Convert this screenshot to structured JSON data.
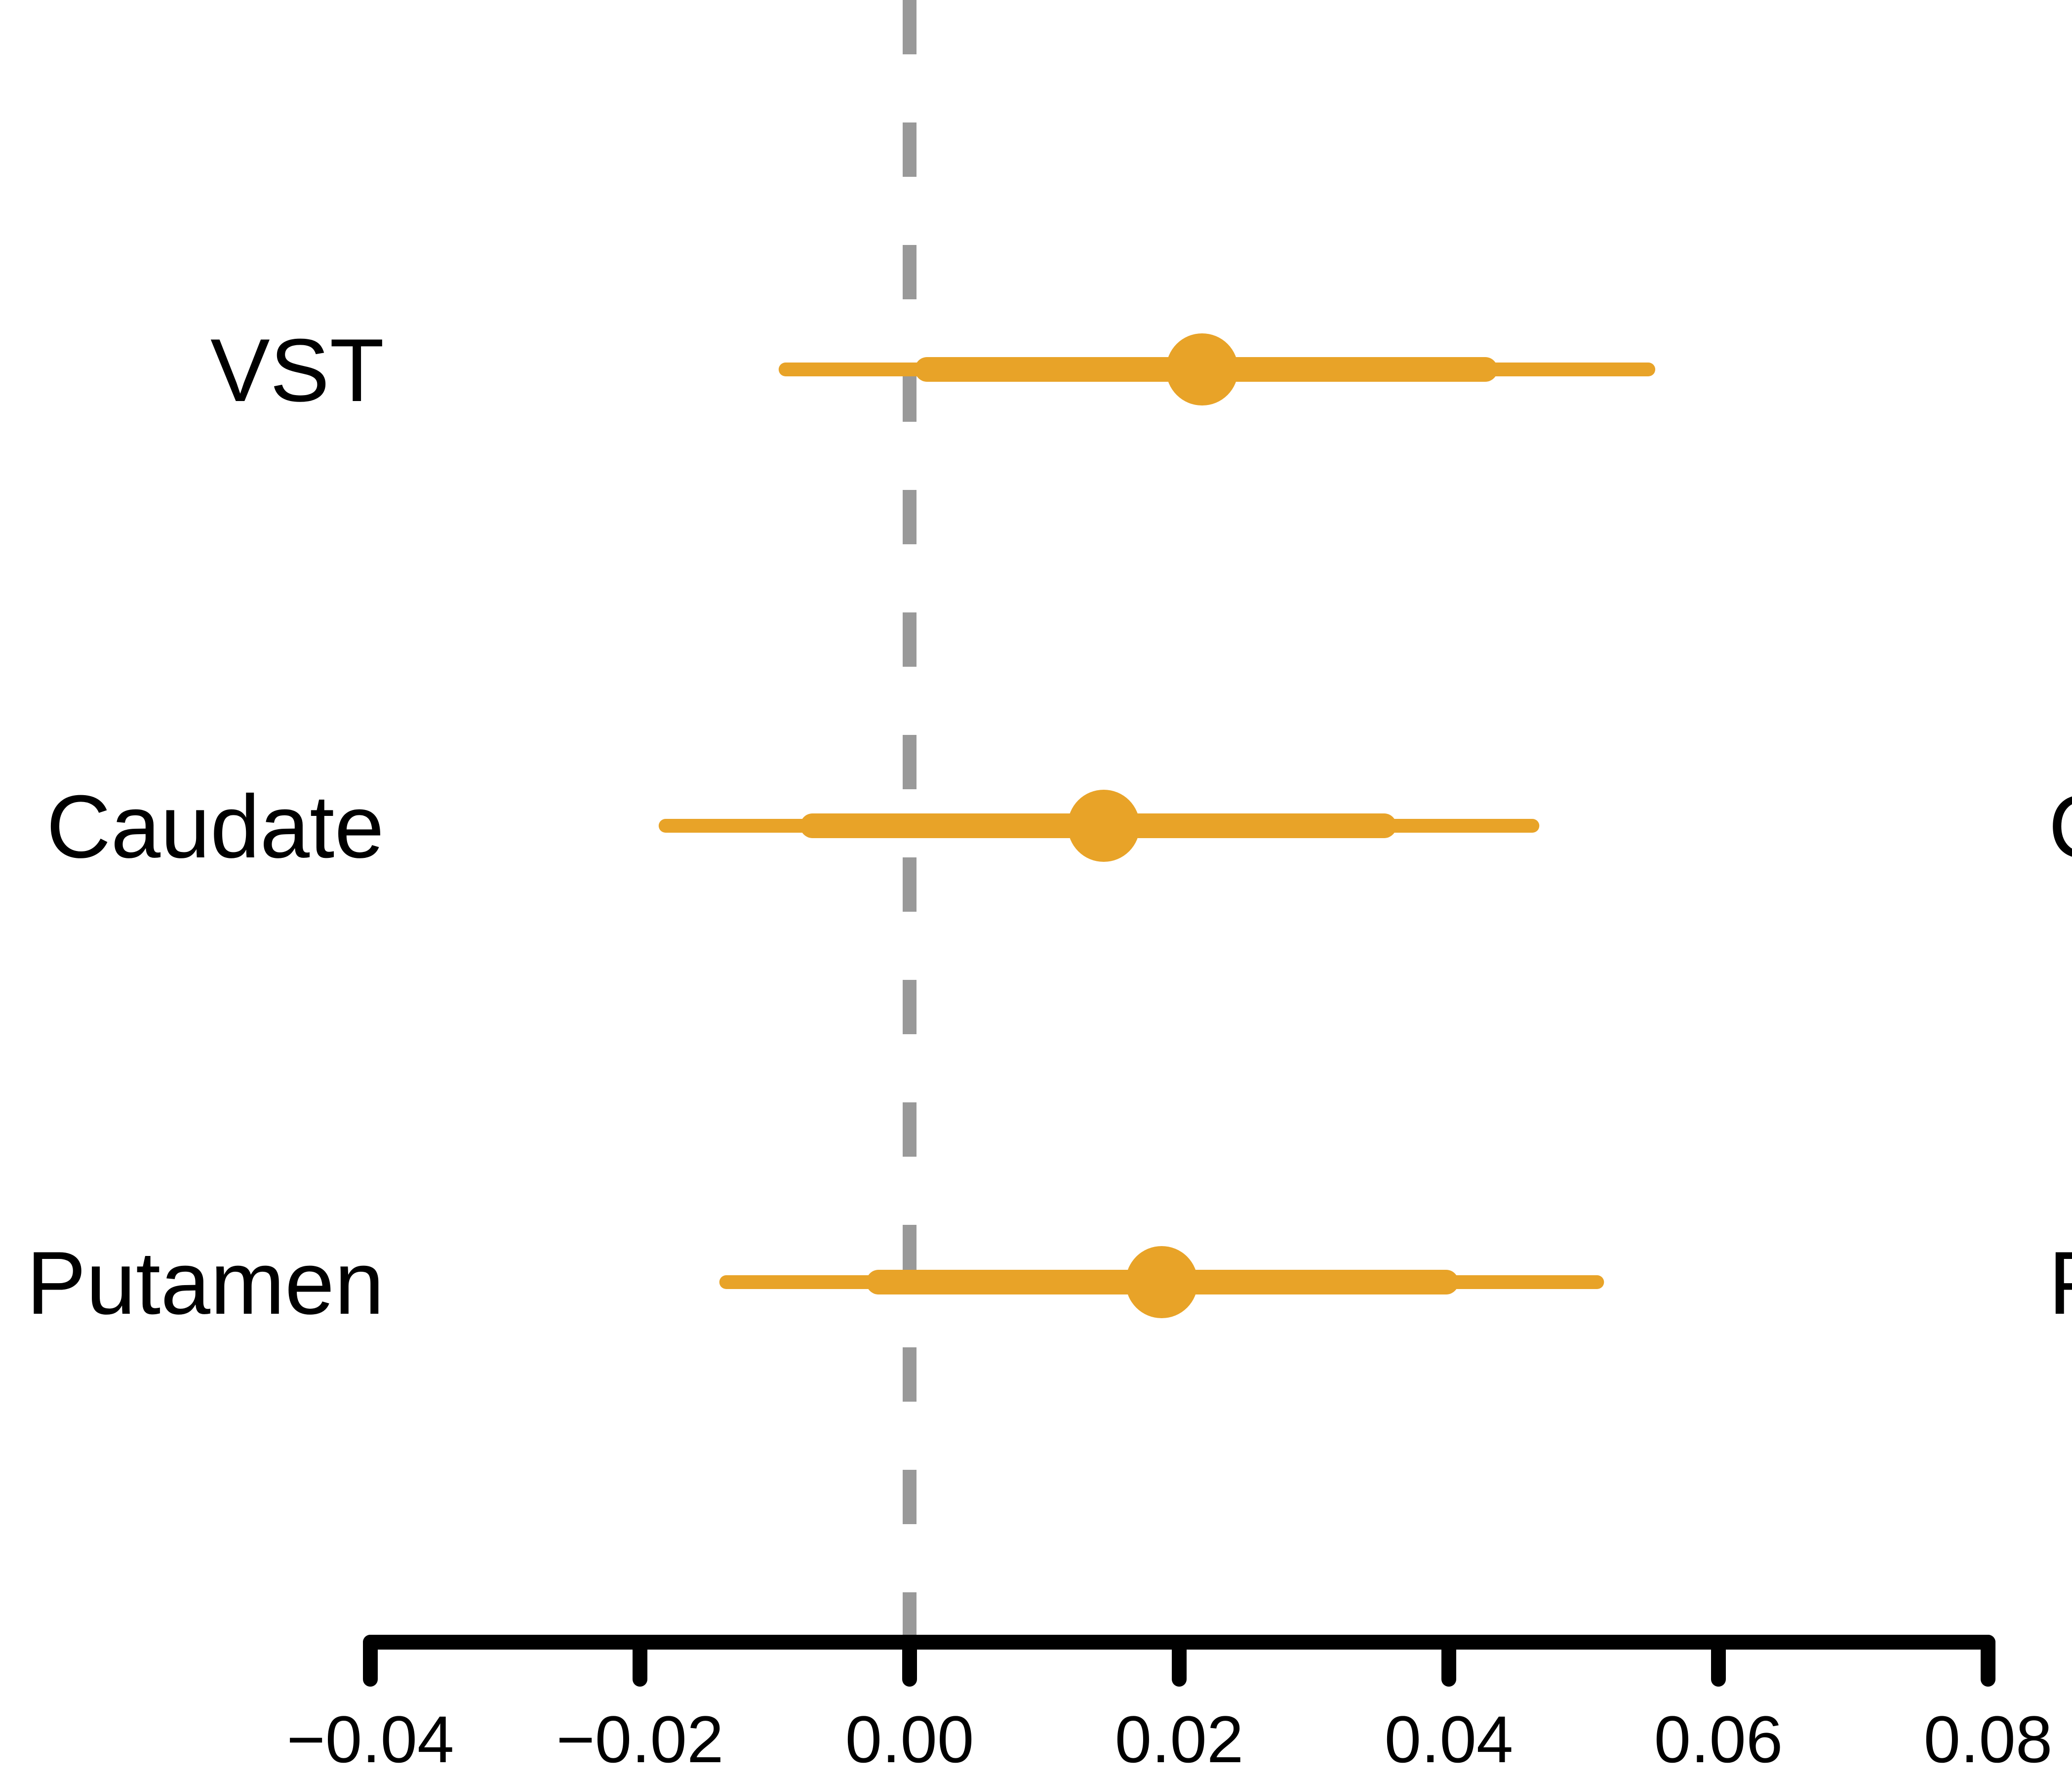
{
  "chart_data": {
    "type": "forest",
    "rows": [
      {
        "label": "VST",
        "estimate": 0.0217,
        "inner": [
          0.0013,
          0.0427
        ],
        "outer": [
          -0.0092,
          0.0548
        ]
      },
      {
        "label": "Caudate",
        "estimate": 0.0144,
        "inner": [
          -0.0072,
          0.0352
        ],
        "outer": [
          -0.0181,
          0.0462
        ]
      },
      {
        "label": "Putamen",
        "estimate": 0.0187,
        "inner": [
          -0.0023,
          0.0398
        ],
        "outer": [
          -0.0136,
          0.051
        ]
      }
    ],
    "reference_line": 0.0,
    "reference_style": "dashed",
    "xlim": [
      -0.04,
      0.08
    ],
    "xticks": [
      -0.04,
      -0.02,
      0.0,
      0.02,
      0.04,
      0.06,
      0.08
    ],
    "xtick_labels": [
      "−0.04",
      "−0.02",
      "0.00",
      "0.02",
      "0.04",
      "0.06",
      "0.08"
    ],
    "partial_right_labels": [
      "C",
      "P"
    ],
    "xlabel": "",
    "title": ""
  },
  "colors": {
    "series": "#E8A328",
    "reference_line": "#999999",
    "axis": "#000000"
  }
}
